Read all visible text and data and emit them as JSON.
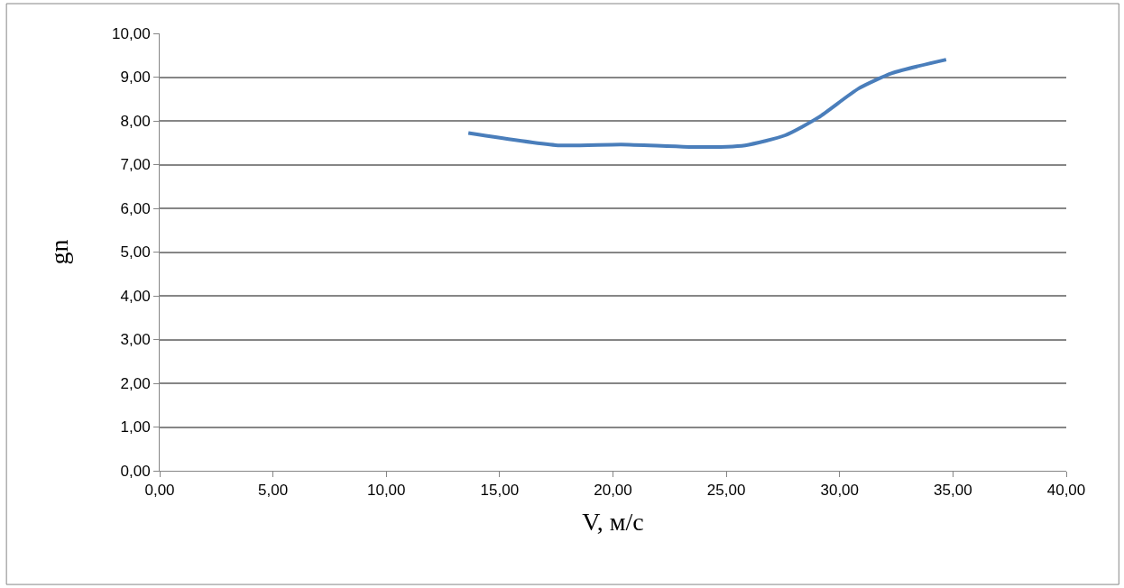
{
  "chart_data": {
    "type": "line",
    "xlabel": "V, м/с",
    "ylabel": "gn",
    "x": [
      13.62,
      17.57,
      20.37,
      23.69,
      25.83,
      27.6,
      29.07,
      30.84,
      32.31,
      34.7
    ],
    "series": [
      {
        "color": "#4a7ebb",
        "values": [
          7.72,
          7.44,
          7.46,
          7.4,
          7.44,
          7.67,
          8.08,
          8.74,
          9.09,
          9.4
        ]
      }
    ],
    "xlim": [
      0,
      40
    ],
    "xticks": [
      {
        "value": 0,
        "label": "0,00"
      },
      {
        "value": 5,
        "label": "5,00"
      },
      {
        "value": 10,
        "label": "10,00"
      },
      {
        "value": 15,
        "label": "15,00"
      },
      {
        "value": 20,
        "label": "20,00"
      },
      {
        "value": 25,
        "label": "25,00"
      },
      {
        "value": 30,
        "label": "30,00"
      },
      {
        "value": 35,
        "label": "35,00"
      },
      {
        "value": 40,
        "label": "40,00"
      }
    ],
    "ylim": [
      0,
      10
    ],
    "yticks": [
      {
        "value": 0,
        "label": "0,00"
      },
      {
        "value": 1,
        "label": "1,00"
      },
      {
        "value": 2,
        "label": "2,00"
      },
      {
        "value": 3,
        "label": "3,00"
      },
      {
        "value": 4,
        "label": "4,00"
      },
      {
        "value": 5,
        "label": "5,00"
      },
      {
        "value": 6,
        "label": "6,00"
      },
      {
        "value": 7,
        "label": "7,00"
      },
      {
        "value": 8,
        "label": "8,00"
      },
      {
        "value": 9,
        "label": "9,00"
      },
      {
        "value": 10,
        "label": "10,00"
      }
    ],
    "grid": "y",
    "marker": "none",
    "line_style": "solid"
  }
}
